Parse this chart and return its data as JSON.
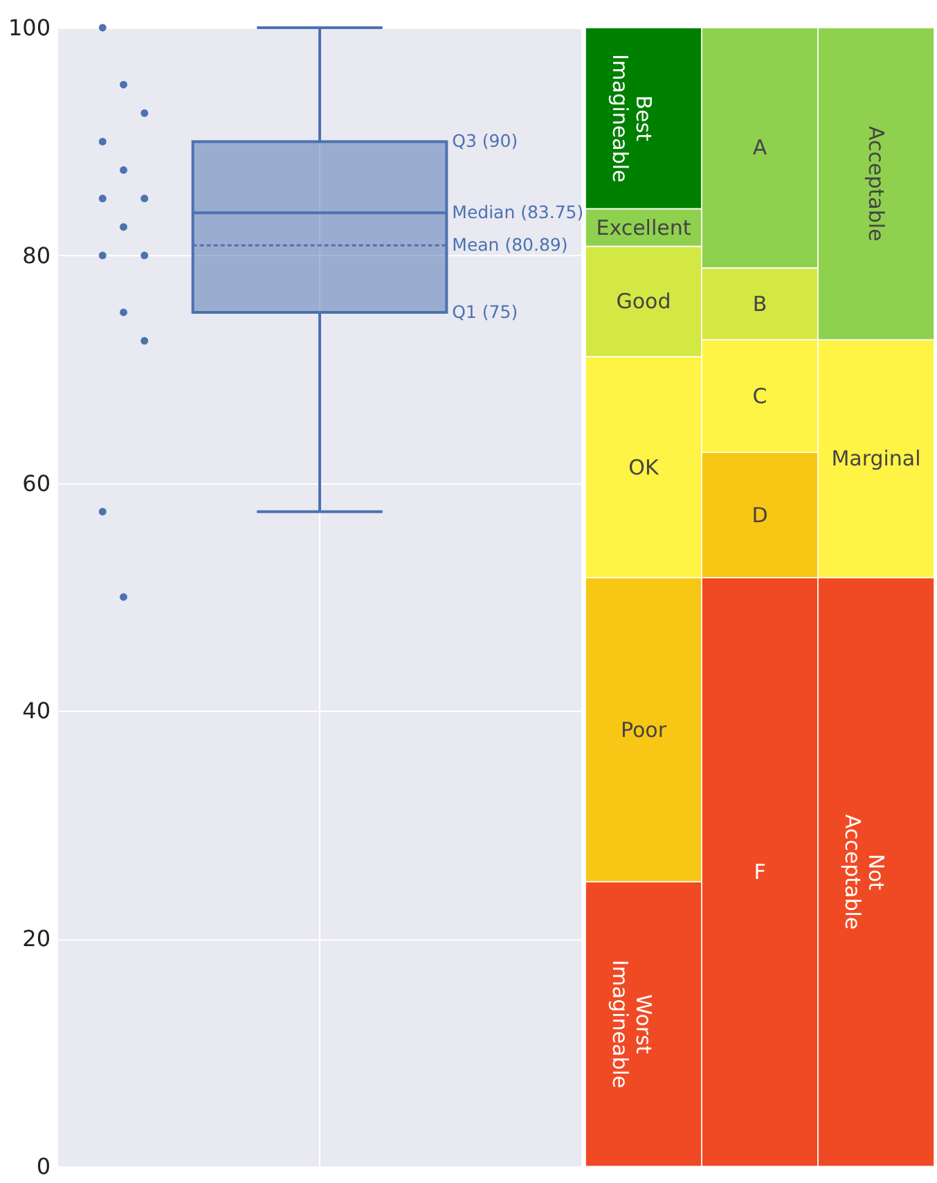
{
  "chart_data": [
    {
      "type": "box",
      "categories": [
        null
      ],
      "ylim": [
        0,
        100
      ],
      "yticks": [
        0,
        20,
        40,
        60,
        80,
        100
      ],
      "grid": true,
      "marker": "circle",
      "series": [
        {
          "type": "box",
          "color": "#4c72b0",
          "boxes": [
            {
              "low": 57.5,
              "q1": 75,
              "median": 83.75,
              "q3": 90,
              "high": 100,
              "mean": 80.89
            }
          ]
        },
        {
          "type": "scatter",
          "color": "#4c72b0",
          "x": [
            null,
            null,
            null,
            null,
            null,
            null,
            null,
            null,
            null,
            null,
            null,
            null,
            null,
            null
          ],
          "values": [
            100,
            95,
            92.5,
            90,
            87.5,
            85,
            85,
            82.5,
            80,
            80,
            75,
            72.5,
            57.5,
            50
          ]
        }
      ],
      "annotations": [
        "Q3 (90)",
        "Median (83.75)",
        "Mean (80.89)",
        "Q1 (75)"
      ]
    },
    {
      "type": "bar",
      "stacked": true,
      "categories": [
        null,
        null,
        null
      ],
      "ylim": [
        0,
        100
      ],
      "tick_labels": false,
      "series": [
        {
          "name": "Worst Imagineable",
          "color": "#f04a25",
          "values": [
            25,
            null,
            null
          ]
        },
        {
          "name": "Poor",
          "color": "#f8c715",
          "values": [
            26.7,
            null,
            null
          ]
        },
        {
          "name": "OK",
          "color": "#fff345",
          "values": [
            19.4,
            null,
            null
          ]
        },
        {
          "name": "Good",
          "color": "#d4e843",
          "values": [
            9.7,
            null,
            null
          ]
        },
        {
          "name": "Excellent",
          "color": "#8fd14f",
          "values": [
            3.3,
            null,
            null
          ]
        },
        {
          "name": "Best Imagineable",
          "color": "#008000",
          "values": [
            15.9,
            null,
            null
          ]
        },
        {
          "name": "F",
          "color": "#f04a25",
          "values": [
            null,
            51.7,
            null
          ]
        },
        {
          "name": "D",
          "color": "#f8c715",
          "values": [
            null,
            11,
            null
          ]
        },
        {
          "name": "C",
          "color": "#fff345",
          "values": [
            null,
            9.9,
            null
          ]
        },
        {
          "name": "B",
          "color": "#d4e843",
          "values": [
            null,
            6.3,
            null
          ]
        },
        {
          "name": "A",
          "color": "#8fd14f",
          "values": [
            null,
            21.1,
            null
          ]
        },
        {
          "name": "Not Acceptable",
          "color": "#f04a25",
          "values": [
            null,
            null,
            51.7
          ]
        },
        {
          "name": "Marginal",
          "color": "#fff345",
          "values": [
            null,
            null,
            20.9
          ]
        },
        {
          "name": "Acceptable",
          "color": "#8fd14f",
          "values": [
            null,
            null,
            27.4
          ]
        }
      ]
    }
  ]
}
